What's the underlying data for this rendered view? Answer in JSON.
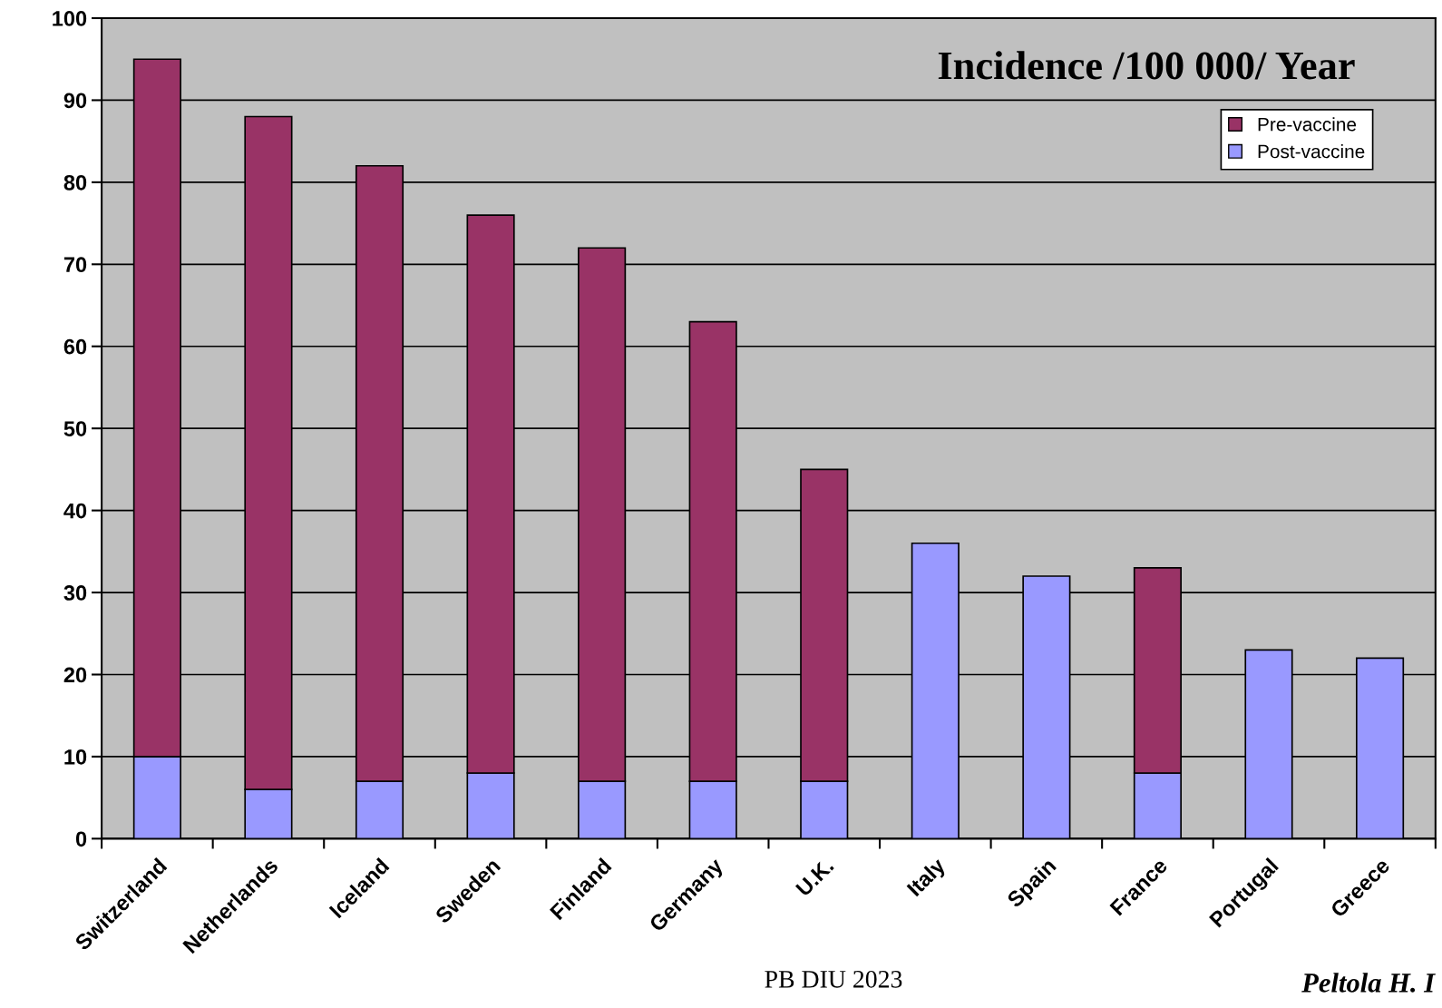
{
  "chart_data": {
    "type": "bar",
    "title": "Incidence /100 000/ Year",
    "stacked": true,
    "categories": [
      "Switzerland",
      "Netherlands",
      "Iceland",
      "Sweden",
      "Finland",
      "Germany",
      "U.K.",
      "Italy",
      "Spain",
      "France",
      "Portugal",
      "Greece"
    ],
    "series": [
      {
        "name": "Post-vaccine",
        "color": "#9999ff",
        "values": [
          10,
          6,
          7,
          8,
          7,
          7,
          7,
          36,
          32,
          8,
          23,
          22
        ]
      },
      {
        "name": "Pre-vaccine",
        "color": "#993366",
        "values": [
          85,
          82,
          75,
          68,
          65,
          56,
          38,
          null,
          null,
          25,
          null,
          null
        ]
      }
    ],
    "ylim": [
      0,
      100
    ],
    "yticks": [
      0,
      10,
      20,
      30,
      40,
      50,
      60,
      70,
      80,
      90,
      100
    ],
    "grid": "y",
    "legend": "top right",
    "annotations": [
      "PB DIU 2023",
      "Peltola H. I"
    ]
  }
}
